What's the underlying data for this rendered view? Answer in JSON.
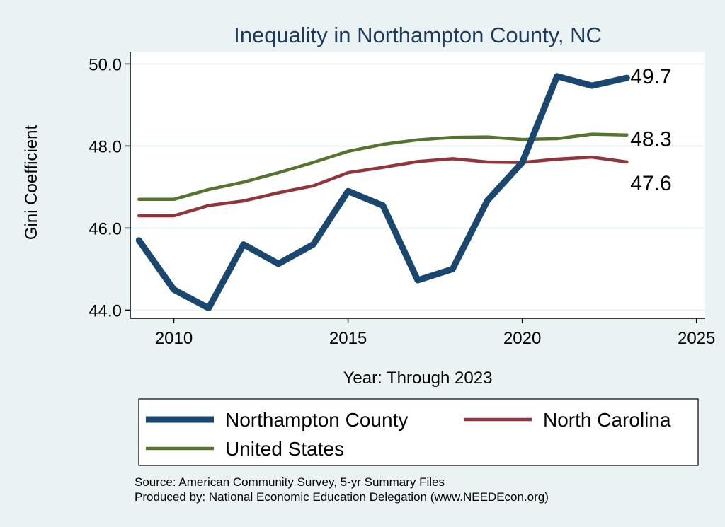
{
  "chart_data": {
    "type": "line",
    "title": "Inequality in Northampton County, NC",
    "xlabel": "Year: Through 2023",
    "ylabel": "Gini Coefficient",
    "xlim": [
      2008.75,
      2025.25
    ],
    "ylim": [
      43.8,
      50.3
    ],
    "x_ticks": [
      2010,
      2015,
      2020,
      2025
    ],
    "x_tick_labels": [
      "2010",
      "2015",
      "2020",
      "2025"
    ],
    "y_ticks": [
      44,
      46,
      48,
      50
    ],
    "y_tick_labels": [
      "44.0",
      "46.0",
      "48.0",
      "50.0"
    ],
    "grid": true,
    "legend_position": "bottom",
    "x": [
      2009,
      2010,
      2011,
      2012,
      2013,
      2014,
      2015,
      2016,
      2017,
      2018,
      2019,
      2020,
      2021,
      2022,
      2023
    ],
    "series": [
      {
        "name": "Northampton County",
        "color": "#1a476f",
        "values": [
          45.7,
          44.5,
          44.05,
          45.6,
          45.13,
          45.6,
          46.9,
          46.55,
          44.73,
          45.0,
          46.67,
          47.6,
          49.7,
          49.47,
          49.66
        ],
        "end_label": "49.7"
      },
      {
        "name": "North Carolina",
        "color": "#90353b",
        "values": [
          46.3,
          46.3,
          46.55,
          46.66,
          46.86,
          47.03,
          47.35,
          47.48,
          47.62,
          47.69,
          47.61,
          47.6,
          47.68,
          47.73,
          47.61
        ],
        "end_label": "47.6"
      },
      {
        "name": "United States",
        "color": "#55752f",
        "values": [
          46.7,
          46.7,
          46.94,
          47.12,
          47.35,
          47.6,
          47.87,
          48.04,
          48.15,
          48.21,
          48.22,
          48.16,
          48.18,
          48.29,
          48.27
        ],
        "end_label": "48.3"
      }
    ],
    "source_lines": [
      "Source: American Community Survey, 5-yr Summary Files",
      "Produced by: National Economic Education Delegation (www.NEEDEcon.org)"
    ]
  }
}
